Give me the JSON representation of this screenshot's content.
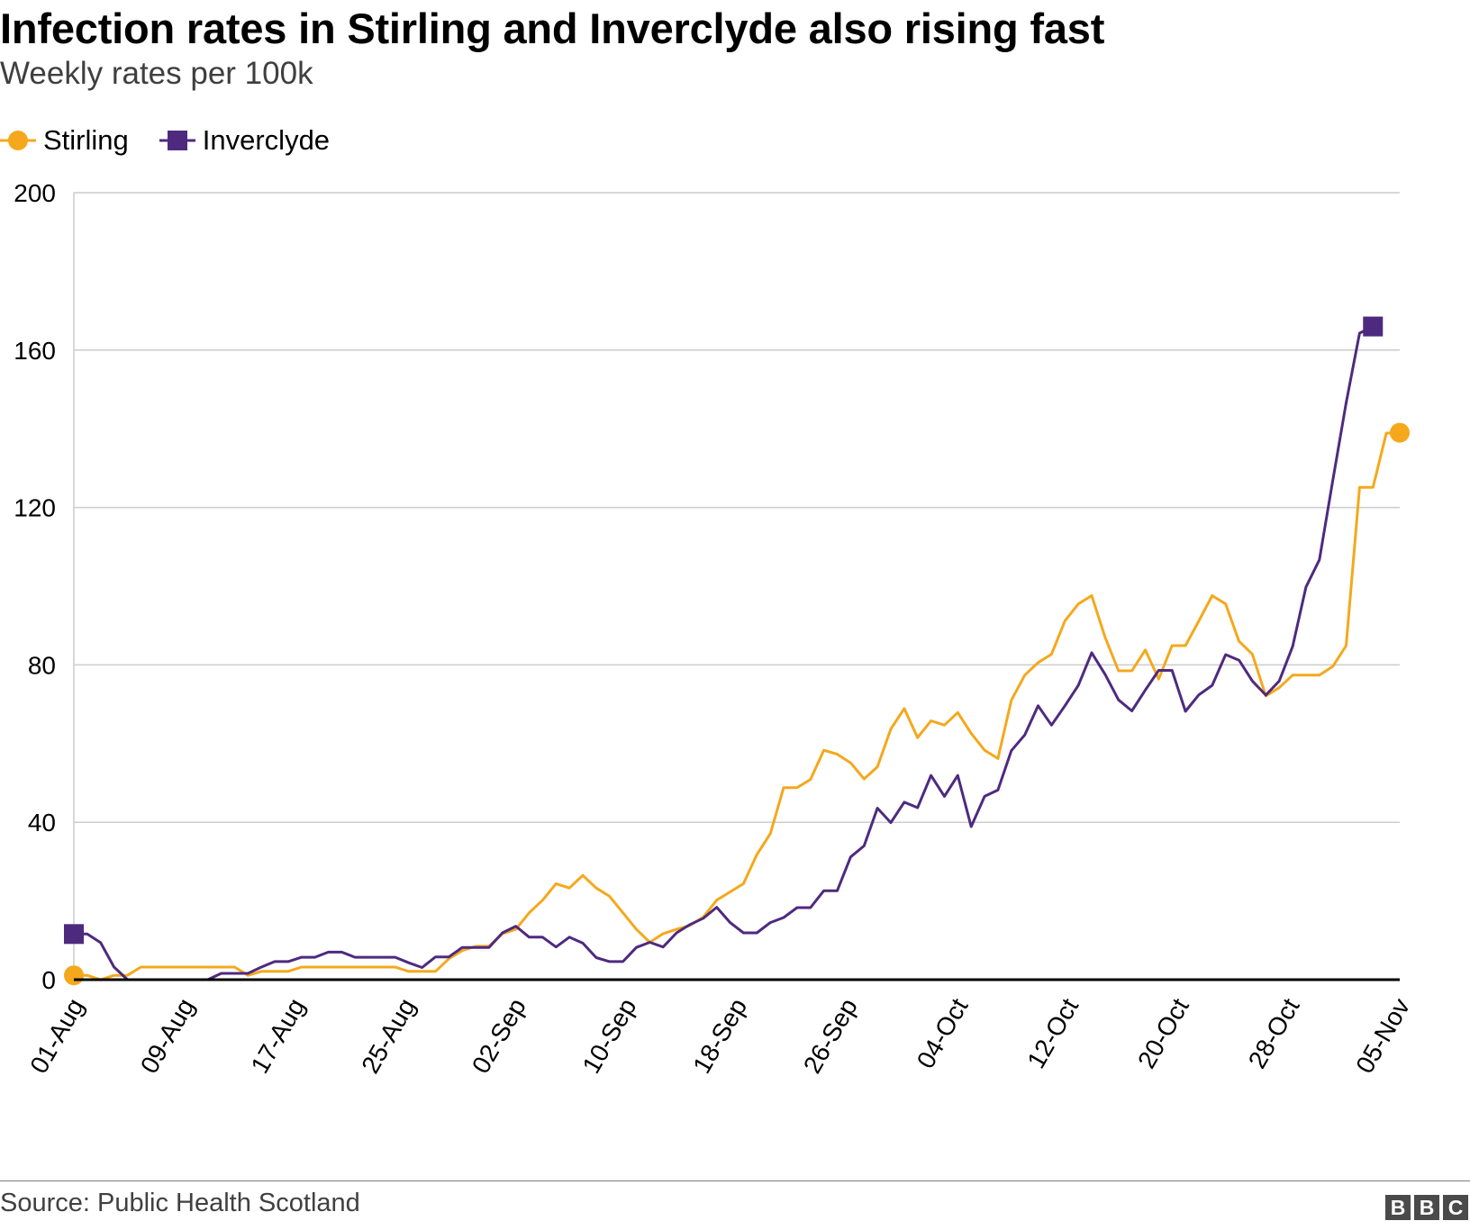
{
  "header": {
    "title": "Infection rates in Stirling and Inverclyde also rising fast",
    "subtitle": "Weekly rates per 100k"
  },
  "footer": {
    "source": "Source: Public Health Scotland",
    "logo_letters": [
      "B",
      "B",
      "C"
    ]
  },
  "colors": {
    "stirling": "#f5a81c",
    "inverclyde": "#4e2a7f",
    "grid": "#cccccc",
    "baseline": "#000000"
  },
  "chart_data": {
    "type": "line",
    "title": "Infection rates in Stirling and Inverclyde also rising fast",
    "subtitle": "Weekly rates per 100k",
    "legend_position": "top-left",
    "grid": true,
    "ylim": [
      0,
      200
    ],
    "y_ticks": [
      0,
      40,
      80,
      120,
      160,
      200
    ],
    "x_ticks": [
      "01-Aug",
      "09-Aug",
      "17-Aug",
      "25-Aug",
      "02-Sep",
      "10-Sep",
      "18-Sep",
      "26-Sep",
      "04-Oct",
      "12-Oct",
      "20-Oct",
      "28-Oct",
      "05-Nov"
    ],
    "x_start": "01-Aug",
    "x_end": "05-Nov",
    "series": [
      {
        "name": "Stirling",
        "marker": "circle",
        "values": [
          1.1,
          1.1,
          0,
          1.1,
          1.1,
          3.2,
          3.2,
          3.2,
          3.2,
          3.2,
          3.2,
          3.2,
          3.2,
          1.1,
          2.1,
          2.1,
          2.1,
          3.2,
          3.2,
          3.2,
          3.2,
          3.2,
          3.2,
          3.2,
          3.2,
          2.1,
          2.1,
          2.1,
          5.3,
          7.4,
          8.5,
          8.5,
          11.7,
          12.8,
          17,
          20.2,
          24.4,
          23.3,
          26.5,
          23.3,
          21.2,
          17,
          12.8,
          9.5,
          11.7,
          12.8,
          13.8,
          15.9,
          20.2,
          22.3,
          24.4,
          31.8,
          37.1,
          48.8,
          48.8,
          50.9,
          58.3,
          57.3,
          55.1,
          51,
          54.1,
          63.7,
          68.9,
          61.5,
          65.8,
          64.7,
          67.9,
          62.6,
          58.3,
          56.2,
          71,
          77.4,
          80.6,
          82.7,
          91.2,
          95.5,
          97.6,
          87,
          78.5,
          78.5,
          83.8,
          76.4,
          84.9,
          84.9,
          91.2,
          97.6,
          95.5,
          86,
          82.7,
          72.1,
          74.2,
          77.4,
          77.4,
          77.4,
          79.6,
          84.9,
          125.1,
          125.1,
          138.9,
          139
        ]
      },
      {
        "name": "Inverclyde",
        "marker": "square",
        "values": [
          11.6,
          11.6,
          9.4,
          3.2,
          0,
          0,
          0,
          0,
          0,
          0,
          0,
          1.6,
          1.6,
          1.6,
          3.2,
          4.6,
          4.6,
          5.7,
          5.7,
          7,
          7,
          5.7,
          5.7,
          5.7,
          5.7,
          4.3,
          3.1,
          5.8,
          5.8,
          8.2,
          8.2,
          8.2,
          11.9,
          13.6,
          10.8,
          10.8,
          8.3,
          10.8,
          9.3,
          5.6,
          4.6,
          4.6,
          8.2,
          9.5,
          8.3,
          11.9,
          14,
          15.6,
          18.4,
          14.5,
          11.9,
          11.9,
          14.5,
          15.8,
          18.3,
          18.3,
          22.6,
          22.6,
          31.2,
          34,
          43.6,
          39.9,
          45.1,
          43.7,
          51.9,
          46.6,
          51.9,
          38.9,
          46.6,
          48.2,
          58.2,
          62.2,
          69.6,
          64.7,
          69.6,
          74.8,
          83.1,
          77.6,
          71.1,
          68.3,
          73.6,
          78.6,
          78.6,
          68.2,
          72.4,
          74.8,
          82.6,
          81.2,
          75.9,
          72.3,
          75.9,
          84.7,
          99.8,
          106.7,
          126.9,
          146.6,
          164.3,
          166
        ]
      }
    ]
  }
}
